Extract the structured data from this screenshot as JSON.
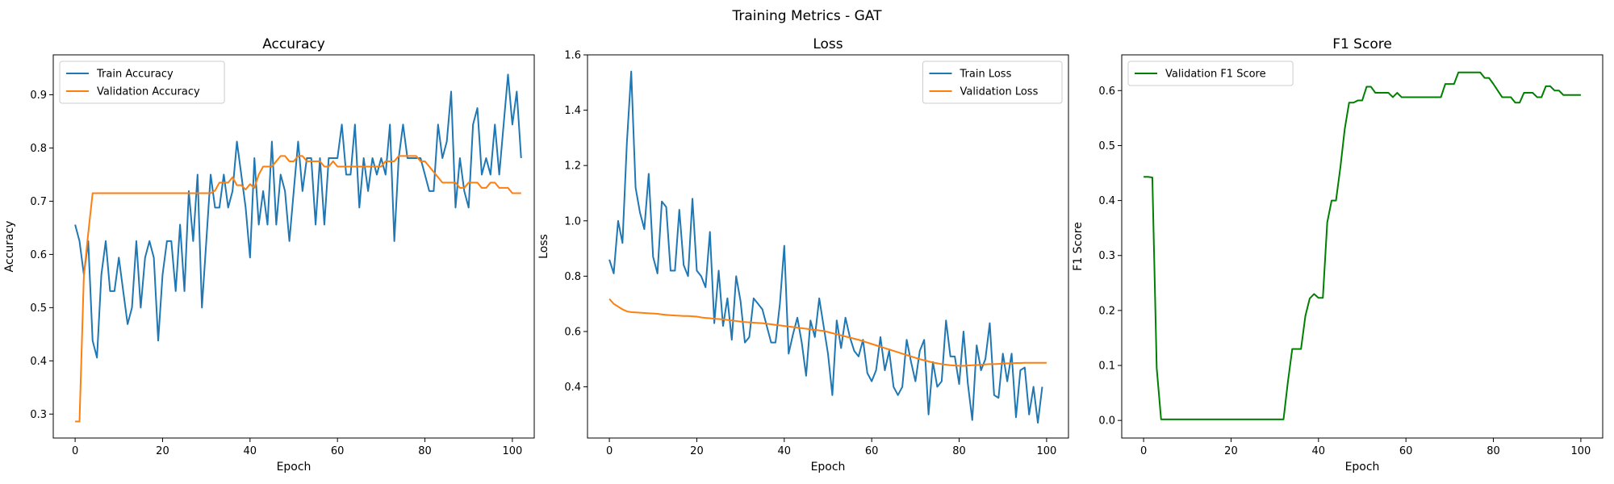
{
  "figure_title": "Training Metrics - GAT",
  "chart_data": [
    {
      "type": "line",
      "title": "Accuracy",
      "xlabel": "Epoch",
      "ylabel": "Accuracy",
      "xlim": [
        -5,
        105
      ],
      "ylim": [
        0.255,
        0.975
      ],
      "xticks": [
        0,
        20,
        40,
        60,
        80,
        100
      ],
      "yticks": [
        0.3,
        0.4,
        0.5,
        0.6,
        0.7,
        0.8,
        0.9
      ],
      "ytick_decimals": 1,
      "legend_position": "upper-left",
      "grid": false,
      "series": [
        {
          "name": "Train Accuracy",
          "color": "#1f77b4",
          "values": [
            0.656,
            0.625,
            0.562,
            0.625,
            0.438,
            0.406,
            0.562,
            0.625,
            0.531,
            0.531,
            0.594,
            0.531,
            0.469,
            0.5,
            0.625,
            0.5,
            0.594,
            0.625,
            0.594,
            0.438,
            0.562,
            0.625,
            0.625,
            0.531,
            0.656,
            0.531,
            0.719,
            0.625,
            0.75,
            0.5,
            0.625,
            0.75,
            0.688,
            0.688,
            0.75,
            0.688,
            0.719,
            0.812,
            0.75,
            0.688,
            0.594,
            0.781,
            0.656,
            0.719,
            0.656,
            0.812,
            0.656,
            0.75,
            0.719,
            0.625,
            0.719,
            0.812,
            0.719,
            0.781,
            0.781,
            0.656,
            0.781,
            0.656,
            0.781,
            0.781,
            0.781,
            0.844,
            0.75,
            0.75,
            0.844,
            0.688,
            0.781,
            0.719,
            0.781,
            0.75,
            0.781,
            0.75,
            0.844,
            0.625,
            0.781,
            0.844,
            0.781,
            0.781,
            0.781,
            0.781,
            0.75,
            0.719,
            0.719,
            0.844,
            0.781,
            0.812,
            0.906,
            0.688,
            0.781,
            0.719,
            0.688,
            0.844,
            0.875,
            0.75,
            0.781,
            0.75,
            0.844,
            0.75,
            0.844,
            0.938,
            0.844,
            0.906,
            0.781
          ]
        },
        {
          "name": "Validation Accuracy",
          "color": "#ff7f0e",
          "values": [
            0.286,
            0.286,
            0.56,
            0.64,
            0.715,
            0.715,
            0.715,
            0.715,
            0.715,
            0.715,
            0.715,
            0.715,
            0.715,
            0.715,
            0.715,
            0.715,
            0.715,
            0.715,
            0.715,
            0.715,
            0.715,
            0.715,
            0.715,
            0.715,
            0.715,
            0.715,
            0.715,
            0.715,
            0.715,
            0.715,
            0.715,
            0.715,
            0.72,
            0.735,
            0.735,
            0.735,
            0.745,
            0.73,
            0.73,
            0.722,
            0.732,
            0.725,
            0.75,
            0.765,
            0.765,
            0.765,
            0.775,
            0.785,
            0.785,
            0.775,
            0.775,
            0.785,
            0.785,
            0.775,
            0.775,
            0.775,
            0.775,
            0.765,
            0.765,
            0.775,
            0.765,
            0.765,
            0.765,
            0.765,
            0.765,
            0.765,
            0.765,
            0.765,
            0.765,
            0.765,
            0.765,
            0.775,
            0.775,
            0.775,
            0.785,
            0.785,
            0.785,
            0.785,
            0.785,
            0.775,
            0.775,
            0.765,
            0.755,
            0.745,
            0.735,
            0.735,
            0.735,
            0.735,
            0.725,
            0.725,
            0.735,
            0.735,
            0.735,
            0.725,
            0.725,
            0.735,
            0.735,
            0.725,
            0.725,
            0.725,
            0.715,
            0.715,
            0.715
          ]
        }
      ]
    },
    {
      "type": "line",
      "title": "Loss",
      "xlabel": "Epoch",
      "ylabel": "Loss",
      "xlim": [
        -5,
        105
      ],
      "ylim": [
        0.215,
        1.6
      ],
      "xticks": [
        0,
        20,
        40,
        60,
        80,
        100
      ],
      "yticks": [
        0.4,
        0.6,
        0.8,
        1.0,
        1.2,
        1.4,
        1.6
      ],
      "ytick_decimals": 1,
      "legend_position": "upper-right",
      "grid": false,
      "series": [
        {
          "name": "Train Loss",
          "color": "#1f77b4",
          "values": [
            0.86,
            0.81,
            1.0,
            0.92,
            1.28,
            1.54,
            1.12,
            1.03,
            0.97,
            1.17,
            0.87,
            0.81,
            1.07,
            1.05,
            0.82,
            0.82,
            1.04,
            0.84,
            0.8,
            1.08,
            0.82,
            0.8,
            0.76,
            0.96,
            0.63,
            0.82,
            0.62,
            0.72,
            0.57,
            0.8,
            0.71,
            0.56,
            0.58,
            0.72,
            0.7,
            0.68,
            0.62,
            0.56,
            0.56,
            0.7,
            0.91,
            0.52,
            0.59,
            0.65,
            0.56,
            0.44,
            0.64,
            0.58,
            0.72,
            0.62,
            0.52,
            0.37,
            0.64,
            0.54,
            0.65,
            0.58,
            0.53,
            0.51,
            0.57,
            0.45,
            0.42,
            0.46,
            0.58,
            0.46,
            0.53,
            0.4,
            0.37,
            0.4,
            0.57,
            0.49,
            0.42,
            0.53,
            0.57,
            0.3,
            0.49,
            0.4,
            0.42,
            0.64,
            0.51,
            0.51,
            0.41,
            0.6,
            0.41,
            0.28,
            0.55,
            0.46,
            0.5,
            0.63,
            0.37,
            0.36,
            0.52,
            0.42,
            0.52,
            0.29,
            0.46,
            0.47,
            0.3,
            0.4,
            0.27,
            0.4
          ],
          "note": "values indexed by epoch 0..99"
        },
        {
          "name": "Validation Loss",
          "color": "#ff7f0e",
          "values": [
            0.718,
            0.7,
            0.69,
            0.68,
            0.673,
            0.67,
            0.669,
            0.668,
            0.667,
            0.666,
            0.665,
            0.664,
            0.662,
            0.66,
            0.659,
            0.658,
            0.657,
            0.656,
            0.656,
            0.655,
            0.654,
            0.651,
            0.649,
            0.648,
            0.646,
            0.645,
            0.644,
            0.642,
            0.64,
            0.638,
            0.636,
            0.634,
            0.633,
            0.632,
            0.631,
            0.63,
            0.628,
            0.626,
            0.624,
            0.622,
            0.62,
            0.618,
            0.616,
            0.614,
            0.612,
            0.61,
            0.608,
            0.606,
            0.604,
            0.602,
            0.598,
            0.594,
            0.59,
            0.586,
            0.582,
            0.578,
            0.574,
            0.57,
            0.565,
            0.56,
            0.555,
            0.55,
            0.545,
            0.54,
            0.535,
            0.53,
            0.525,
            0.52,
            0.515,
            0.51,
            0.505,
            0.5,
            0.496,
            0.492,
            0.488,
            0.485,
            0.482,
            0.48,
            0.478,
            0.477,
            0.476,
            0.476,
            0.477,
            0.478,
            0.479,
            0.48,
            0.481,
            0.482,
            0.482,
            0.483,
            0.484,
            0.485,
            0.485,
            0.486,
            0.486,
            0.487,
            0.487,
            0.487,
            0.487,
            0.487,
            0.487
          ]
        }
      ]
    },
    {
      "type": "line",
      "title": "F1 Score",
      "xlabel": "Epoch",
      "ylabel": "F1 Score",
      "xlim": [
        -5,
        105
      ],
      "ylim": [
        -0.032,
        0.665
      ],
      "xticks": [
        0,
        20,
        40,
        60,
        80,
        100
      ],
      "yticks": [
        0.0,
        0.1,
        0.2,
        0.3,
        0.4,
        0.5,
        0.6
      ],
      "ytick_decimals": 1,
      "legend_position": "upper-left",
      "grid": false,
      "series": [
        {
          "name": "Validation F1 Score",
          "color": "#008000",
          "values": [
            0.443,
            0.443,
            0.442,
            0.095,
            0.002,
            0.002,
            0.002,
            0.002,
            0.002,
            0.002,
            0.002,
            0.002,
            0.002,
            0.002,
            0.002,
            0.002,
            0.002,
            0.002,
            0.002,
            0.002,
            0.002,
            0.002,
            0.002,
            0.002,
            0.002,
            0.002,
            0.002,
            0.002,
            0.002,
            0.002,
            0.002,
            0.002,
            0.002,
            0.07,
            0.13,
            0.13,
            0.13,
            0.19,
            0.222,
            0.23,
            0.223,
            0.223,
            0.36,
            0.4,
            0.4,
            0.46,
            0.53,
            0.578,
            0.578,
            0.582,
            0.582,
            0.607,
            0.607,
            0.596,
            0.596,
            0.596,
            0.596,
            0.588,
            0.596,
            0.588,
            0.588,
            0.588,
            0.588,
            0.588,
            0.588,
            0.588,
            0.588,
            0.588,
            0.588,
            0.612,
            0.612,
            0.612,
            0.633,
            0.633,
            0.633,
            0.633,
            0.633,
            0.633,
            0.623,
            0.623,
            0.612,
            0.6,
            0.588,
            0.588,
            0.588,
            0.578,
            0.578,
            0.596,
            0.596,
            0.596,
            0.588,
            0.588,
            0.608,
            0.608,
            0.6,
            0.6,
            0.592,
            0.592,
            0.592,
            0.592,
            0.592
          ]
        }
      ]
    }
  ]
}
